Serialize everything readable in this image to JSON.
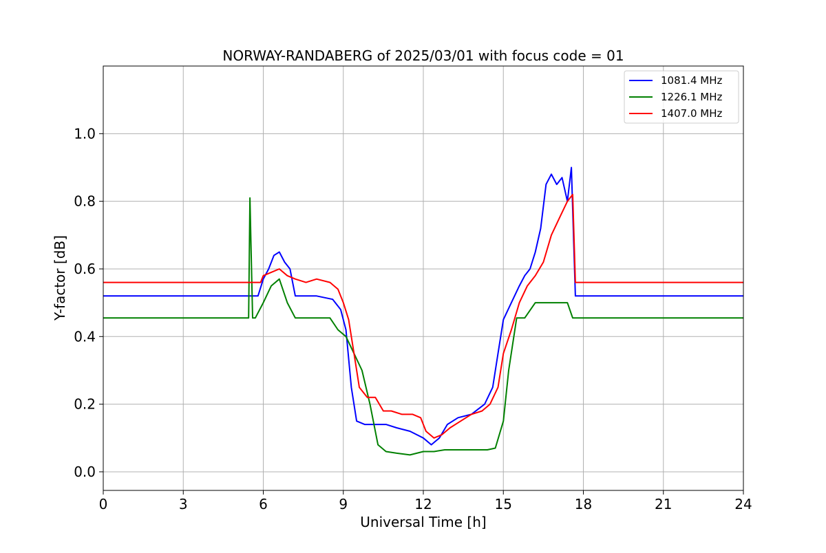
{
  "chart_data": {
    "type": "line",
    "title": "NORWAY-RANDABERG of 2025/03/01 with focus code = 01",
    "xlabel": "Universal Time [h]",
    "ylabel": "Y-factor [dB]",
    "xlim": [
      0,
      24
    ],
    "ylim": [
      -0.055,
      1.2
    ],
    "xticks": [
      0,
      3,
      6,
      9,
      12,
      15,
      18,
      21,
      24
    ],
    "xtick_labels": [
      "0",
      "3",
      "6",
      "9",
      "12",
      "15",
      "18",
      "21",
      "24"
    ],
    "yticks": [
      0.0,
      0.2,
      0.4,
      0.6,
      0.8,
      1.0
    ],
    "ytick_labels": [
      "0.0",
      "0.2",
      "0.4",
      "0.6",
      "0.8",
      "1.0"
    ],
    "grid": true,
    "legend_position": "top-right",
    "series": [
      {
        "name": "1081.4 MHz",
        "color": "#0000ff",
        "x": [
          0,
          5.8,
          6.0,
          6.2,
          6.4,
          6.6,
          6.8,
          7.0,
          7.2,
          8.0,
          8.6,
          8.9,
          9.1,
          9.3,
          9.5,
          9.8,
          10.2,
          10.6,
          11.0,
          11.5,
          12.0,
          12.3,
          12.6,
          12.9,
          13.3,
          13.8,
          14.3,
          14.6,
          14.8,
          15.0,
          15.3,
          15.6,
          15.8,
          16.0,
          16.2,
          16.4,
          16.6,
          16.8,
          17.0,
          17.2,
          17.4,
          17.55,
          17.7,
          24
        ],
        "y": [
          0.52,
          0.52,
          0.57,
          0.6,
          0.64,
          0.65,
          0.62,
          0.6,
          0.52,
          0.52,
          0.51,
          0.48,
          0.42,
          0.25,
          0.15,
          0.14,
          0.14,
          0.14,
          0.13,
          0.12,
          0.1,
          0.08,
          0.1,
          0.14,
          0.16,
          0.17,
          0.2,
          0.25,
          0.35,
          0.45,
          0.5,
          0.55,
          0.58,
          0.6,
          0.65,
          0.72,
          0.85,
          0.88,
          0.85,
          0.87,
          0.8,
          0.9,
          0.52,
          0.52
        ]
      },
      {
        "name": "1226.1 MHz",
        "color": "#008000",
        "x": [
          0,
          5.45,
          5.5,
          5.6,
          5.7,
          6.0,
          6.3,
          6.6,
          6.9,
          7.2,
          8.0,
          8.5,
          8.8,
          9.1,
          9.4,
          9.7,
          10.0,
          10.3,
          10.6,
          11.0,
          11.5,
          12.0,
          12.4,
          12.8,
          13.2,
          13.8,
          14.4,
          14.7,
          15.0,
          15.2,
          15.5,
          15.8,
          16.2,
          16.6,
          17.0,
          17.4,
          17.6,
          17.8,
          24
        ],
        "y": [
          0.455,
          0.455,
          0.81,
          0.455,
          0.455,
          0.5,
          0.55,
          0.57,
          0.5,
          0.455,
          0.455,
          0.455,
          0.42,
          0.4,
          0.35,
          0.3,
          0.2,
          0.08,
          0.06,
          0.055,
          0.05,
          0.06,
          0.06,
          0.065,
          0.065,
          0.065,
          0.065,
          0.07,
          0.15,
          0.3,
          0.455,
          0.455,
          0.5,
          0.5,
          0.5,
          0.5,
          0.455,
          0.455,
          0.455
        ]
      },
      {
        "name": "1407.0 MHz",
        "color": "#ff0000",
        "x": [
          0,
          5.9,
          6.0,
          6.3,
          6.6,
          6.9,
          7.2,
          7.6,
          8.0,
          8.5,
          8.8,
          9.0,
          9.2,
          9.4,
          9.6,
          9.9,
          10.2,
          10.5,
          10.8,
          11.2,
          11.6,
          11.9,
          12.1,
          12.4,
          12.7,
          13.0,
          13.4,
          13.8,
          14.2,
          14.5,
          14.8,
          15.0,
          15.3,
          15.6,
          15.9,
          16.2,
          16.5,
          16.8,
          17.1,
          17.4,
          17.6,
          17.7,
          24
        ],
        "y": [
          0.56,
          0.56,
          0.58,
          0.59,
          0.6,
          0.58,
          0.57,
          0.56,
          0.57,
          0.56,
          0.54,
          0.5,
          0.45,
          0.35,
          0.25,
          0.22,
          0.22,
          0.18,
          0.18,
          0.17,
          0.17,
          0.16,
          0.12,
          0.1,
          0.11,
          0.13,
          0.15,
          0.17,
          0.18,
          0.2,
          0.25,
          0.35,
          0.42,
          0.5,
          0.55,
          0.58,
          0.62,
          0.7,
          0.75,
          0.8,
          0.82,
          0.56,
          0.56
        ]
      }
    ]
  }
}
